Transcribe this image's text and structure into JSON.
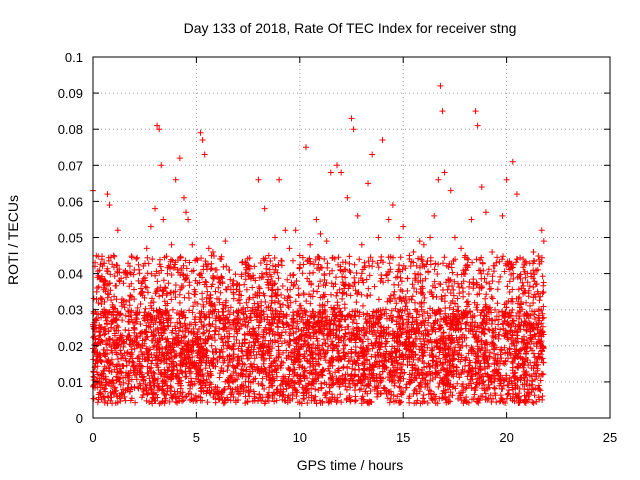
{
  "chart_data": {
    "type": "scatter",
    "title": "Day 133 of 2018, Rate Of TEC Index for receiver stng",
    "xlabel": "GPS time / hours",
    "ylabel": "ROTI / TECUs",
    "xlim": [
      0,
      25
    ],
    "ylim": [
      0,
      0.1
    ],
    "x_ticks": [
      0,
      5,
      10,
      15,
      20,
      25
    ],
    "x_tick_labels": [
      "0",
      "5",
      "10",
      "15",
      "20",
      "25"
    ],
    "y_ticks": [
      0,
      0.01,
      0.02,
      0.03,
      0.04,
      0.05,
      0.06,
      0.07,
      0.08,
      0.09,
      0.1
    ],
    "y_tick_labels": [
      "0",
      "0.01",
      "0.02",
      "0.03",
      "0.04",
      "0.05",
      "0.06",
      "0.07",
      "0.08",
      "0.09",
      "0.1"
    ],
    "grid": true,
    "marker": "+",
    "color": "#ff0000",
    "series": [
      {
        "x": [
          0.0,
          0.1,
          0.2,
          0.4,
          0.6,
          0.7,
          0.8,
          1.0,
          1.2,
          1.4,
          1.6,
          1.8,
          2.0,
          2.2,
          2.4,
          2.6,
          2.8,
          3.0,
          3.1,
          3.2,
          3.3,
          3.4,
          3.6,
          3.8,
          4.0,
          4.2,
          4.4,
          4.5,
          4.6,
          4.8,
          5.0,
          5.2,
          5.3,
          5.4,
          5.6,
          5.8,
          6.0,
          6.2,
          6.4,
          6.6,
          6.8,
          7.0,
          7.2,
          7.5,
          7.8,
          8.0,
          8.3,
          8.5,
          8.8,
          9.0,
          9.3,
          9.5,
          9.8,
          10.0,
          10.3,
          10.5,
          10.8,
          11.0,
          11.3,
          11.5,
          11.8,
          12.0,
          12.3,
          12.5,
          12.6,
          12.8,
          13.0,
          13.3,
          13.5,
          13.8,
          14.0,
          14.3,
          14.5,
          14.8,
          15.0,
          15.3,
          15.5,
          15.8,
          16.0,
          16.3,
          16.5,
          16.7,
          16.8,
          16.9,
          17.0,
          17.3,
          17.5,
          17.8,
          18.0,
          18.3,
          18.5,
          18.6,
          18.8,
          19.0,
          19.3,
          19.5,
          19.8,
          20.0,
          20.3,
          20.5,
          20.8,
          21.0,
          21.3,
          21.5,
          21.7,
          21.8
        ],
        "y": [
          0.063,
          0.043,
          0.036,
          0.033,
          0.035,
          0.062,
          0.059,
          0.045,
          0.052,
          0.031,
          0.039,
          0.034,
          0.041,
          0.038,
          0.034,
          0.047,
          0.053,
          0.058,
          0.081,
          0.08,
          0.07,
          0.055,
          0.04,
          0.048,
          0.066,
          0.072,
          0.061,
          0.057,
          0.055,
          0.048,
          0.044,
          0.079,
          0.077,
          0.073,
          0.047,
          0.046,
          0.039,
          0.044,
          0.049,
          0.041,
          0.038,
          0.037,
          0.03,
          0.04,
          0.042,
          0.066,
          0.058,
          0.045,
          0.05,
          0.066,
          0.052,
          0.047,
          0.052,
          0.045,
          0.075,
          0.048,
          0.055,
          0.051,
          0.049,
          0.068,
          0.07,
          0.068,
          0.061,
          0.083,
          0.08,
          0.056,
          0.048,
          0.065,
          0.073,
          0.05,
          0.077,
          0.055,
          0.059,
          0.05,
          0.053,
          0.045,
          0.046,
          0.049,
          0.048,
          0.05,
          0.056,
          0.066,
          0.092,
          0.085,
          0.068,
          0.063,
          0.05,
          0.047,
          0.045,
          0.055,
          0.085,
          0.081,
          0.064,
          0.057,
          0.046,
          0.043,
          0.056,
          0.066,
          0.071,
          0.062,
          0.044,
          0.04,
          0.046,
          0.035,
          0.052,
          0.049
        ]
      }
    ],
    "band": {
      "x_range": [
        0.0,
        21.8
      ],
      "core_range": [
        0.01,
        0.03
      ],
      "floor": 0.004
    }
  }
}
